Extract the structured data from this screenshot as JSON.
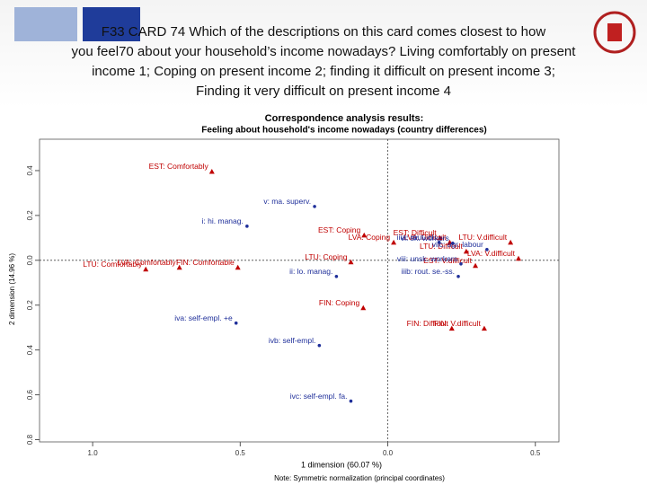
{
  "header": {
    "lines": [
      "F33 CARD 74 Which of the descriptions on this card comes closest to how",
      "you feel70 about your household’s income nowadays? Living comfortably on present",
      "income 1; Coping on present income 2; finding it difficult on present income 3;",
      "Finding it very difficult on present income 4"
    ]
  },
  "chart_data": {
    "type": "scatter",
    "title": "Correspondence analysis results:",
    "subtitle": "Feeling about household's income nowadays (country differences)",
    "x_label": "1 dimension (60.07 %)",
    "y_label": "2 dimension (14.96 %)",
    "note": "Note: Symmetric normalization (principal coordinates)",
    "xlim": [
      -1.18,
      0.58
    ],
    "ylim": [
      -0.81,
      0.54
    ],
    "xticks": [
      {
        "value": -1.0,
        "label": "1.0"
      },
      {
        "value": -0.5,
        "label": "0.5"
      },
      {
        "value": 0,
        "label": "0.0"
      },
      {
        "value": 0.5,
        "label": "0.5"
      }
    ],
    "yticks": [
      {
        "value": -0.8,
        "label": "0.8"
      },
      {
        "value": -0.6,
        "label": "0.6"
      },
      {
        "value": -0.4,
        "label": "0.4"
      },
      {
        "value": -0.2,
        "label": "0.2"
      },
      {
        "value": 0,
        "label": "0.0"
      },
      {
        "value": 0.2,
        "label": "0.2"
      },
      {
        "value": 0.4,
        "label": "0.4"
      }
    ],
    "series": [
      {
        "color": "#c00000",
        "marker": "triangle",
        "labels": [
          "EST: Comfortably",
          "EST: Coping",
          "EST: Difficult",
          "LVA: Comfortably",
          "FIN: Comfortable",
          "LTU: Comfortably",
          "LVA: Coping",
          "LVA: Difficult",
          "LTU: Coping",
          "LTU: Difficult",
          "LTU: V.difficult",
          "LVA: V.difficult",
          "EST: V.difficult",
          "FIN: Coping",
          "FIN: Difficult",
          "FIN: V.difficult"
        ],
        "x": [
          -0.596,
          -0.08,
          0.177,
          -0.706,
          -0.508,
          -0.82,
          0.02,
          0.21,
          -0.125,
          0.266,
          0.416,
          0.443,
          0.297,
          -0.083,
          0.217,
          0.327
        ],
        "y": [
          0.396,
          0.112,
          0.1,
          -0.032,
          -0.032,
          -0.04,
          0.08,
          0.08,
          -0.008,
          0.04,
          0.08,
          0.008,
          -0.024,
          -0.212,
          -0.304,
          -0.304
        ]
      },
      {
        "color": "#1f2f9a",
        "marker": "dot",
        "labels": [
          "v: ma. superv.",
          "i: hi. manag.",
          "iiia: rout. cl.",
          "vi: sk. workers",
          "viic: agr. labour",
          "viii: unsk. workers",
          "ii: lo. manag.",
          "iiib: rout. se.-ss.",
          "iva: self-empl. +e",
          "ivb: self-empl.",
          "ivc: self-empl. fa."
        ],
        "x": [
          -0.248,
          -0.477,
          0.174,
          0.22,
          0.336,
          0.248,
          -0.174,
          0.239,
          -0.514,
          -0.232,
          -0.125
        ],
        "y": [
          0.24,
          0.152,
          0.08,
          0.076,
          0.048,
          -0.016,
          -0.072,
          -0.072,
          -0.28,
          -0.38,
          -0.628
        ]
      }
    ]
  }
}
